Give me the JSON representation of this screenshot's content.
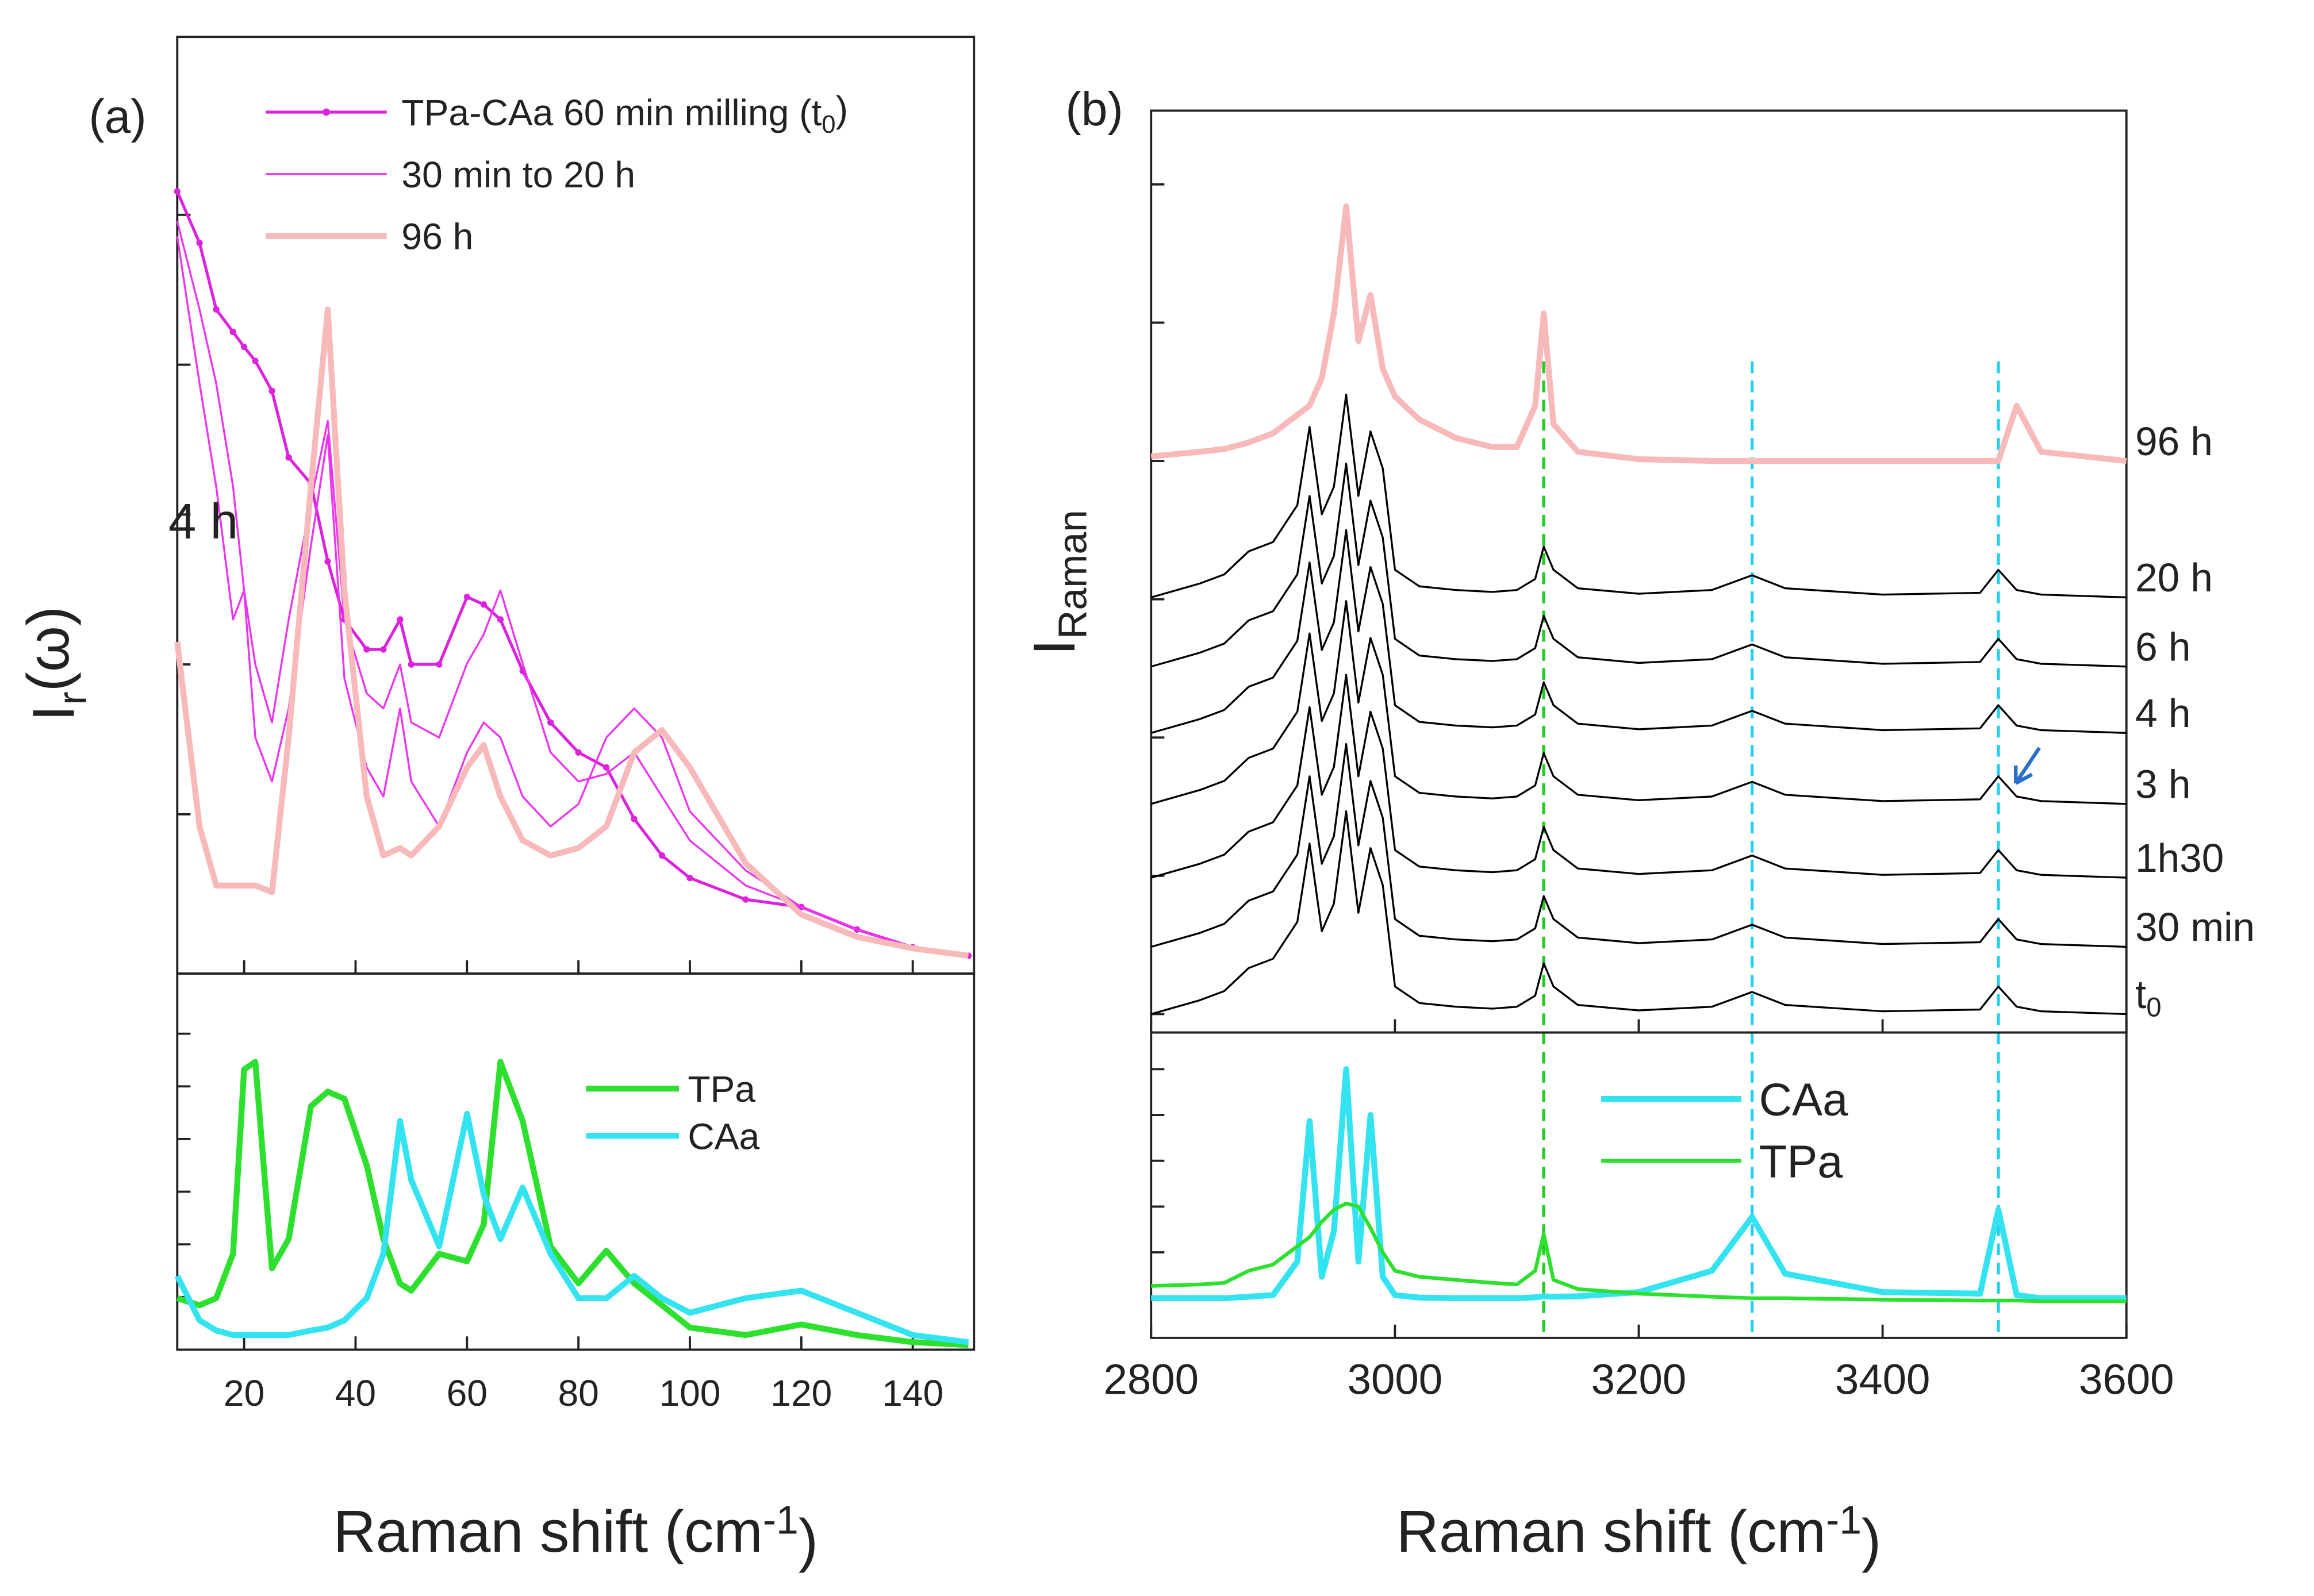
{
  "chart_data": [
    {
      "type": "line",
      "panel": "(a)",
      "ylabel": {
        "base": "I",
        "sub": "r",
        "after": "(ω)"
      },
      "xlim": [
        8,
        151
      ],
      "ylim": [
        0,
        100
      ],
      "yticks": [
        17,
        33,
        49,
        65,
        81
      ],
      "legend": "upper right",
      "annotation": "4 h",
      "annotation_color": "#ee22ee",
      "x": [
        8,
        12,
        15,
        18,
        20,
        22,
        25,
        28,
        32,
        35,
        38,
        42,
        45,
        48,
        50,
        55,
        60,
        63,
        66,
        70,
        75,
        80,
        85,
        90,
        95,
        100,
        110,
        120,
        130,
        140,
        150
      ],
      "series": [
        {
          "name": {
            "base": "TPa-CAa 60 min milling (t",
            "sub": "0",
            "after": ")"
          },
          "color": "#dd22dd",
          "style": "dotted",
          "values": [
            83.5,
            78,
            70.9,
            68.5,
            66.9,
            65.4,
            62.2,
            55.1,
            52.3,
            44,
            37.8,
            34.6,
            34.6,
            37.8,
            33,
            33,
            40.2,
            39.4,
            37.8,
            32.3,
            26.8,
            23.6,
            22,
            16.5,
            12.6,
            10.2,
            7.9,
            7.1,
            4.7,
            2.8,
            1.9
          ]
        },
        {
          "name": "30 min to 20 h",
          "color": "#ee33ee",
          "style": "thin",
          "values": [
            80.3,
            70.9,
            63,
            52,
            40.9,
            33,
            26.8,
            37.8,
            50.4,
            59,
            37.8,
            29.9,
            28.3,
            33,
            26.8,
            25.2,
            33.1,
            36.2,
            40.9,
            33.1,
            23.6,
            20.5,
            21.3,
            23.6,
            18.9,
            14.2,
            9.4,
            7.1,
            4.7,
            2.8,
            1.9
          ]
        },
        {
          "name": null,
          "color": "#ee33ee",
          "style": "thin",
          "values": [
            78.7,
            63,
            52,
            37.8,
            40.9,
            25.2,
            20.5,
            28.3,
            45.7,
            57.5,
            31.5,
            22,
            18.9,
            28.3,
            20.5,
            15.7,
            23.6,
            26.8,
            25.2,
            18.9,
            15.7,
            18.1,
            25.2,
            28.3,
            25.2,
            17.3,
            11,
            7.1,
            4.7,
            2.8,
            1.9
          ]
        },
        {
          "name": "96 h",
          "color": "#f7b9b9",
          "style": "thick",
          "values": [
            35.4,
            15.7,
            9.4,
            9.4,
            9.4,
            9.4,
            8.7,
            25.2,
            52,
            70.9,
            40.9,
            18.9,
            12.6,
            13.4,
            12.6,
            15.7,
            22,
            24.4,
            18.9,
            14.2,
            12.6,
            13.4,
            15.7,
            23.6,
            26,
            22,
            11.8,
            6.3,
            3.9,
            2.7,
            1.9
          ]
        }
      ]
    },
    {
      "type": "line",
      "xlabel": {
        "base": "Raman shift (cm",
        "sup": "-1",
        "after": ")"
      },
      "xlim": [
        8,
        151
      ],
      "xticks": [
        20,
        40,
        60,
        80,
        100,
        120,
        140
      ],
      "ylim": [
        0,
        100
      ],
      "yticks": [
        14,
        28,
        42,
        56,
        70,
        84
      ],
      "legend": "upper right",
      "x": [
        8,
        12,
        15,
        18,
        20,
        22,
        25,
        28,
        32,
        35,
        38,
        42,
        45,
        48,
        50,
        55,
        60,
        63,
        66,
        70,
        75,
        80,
        85,
        90,
        95,
        100,
        110,
        120,
        130,
        140,
        150
      ],
      "series": [
        {
          "name": "TPa",
          "color": "#2ee02e",
          "style": "thick",
          "values": [
            13.7,
            11.8,
            13.7,
            25.5,
            74.5,
            76.5,
            21.6,
            29.4,
            64.7,
            68.6,
            66.7,
            49,
            29.4,
            17.6,
            15.7,
            25.5,
            23.5,
            33.3,
            76.5,
            60.8,
            27.5,
            17.6,
            26.3,
            17.6,
            11.8,
            5.9,
            3.9,
            6.7,
            3.9,
            2,
            1.2
          ]
        },
        {
          "name": "CAa",
          "color": "#33e3f0",
          "style": "thick",
          "values": [
            19.6,
            7.8,
            5.1,
            3.9,
            3.9,
            3.9,
            3.9,
            3.9,
            5.1,
            5.9,
            7.8,
            13.7,
            25.5,
            60.8,
            45.1,
            27.5,
            62.7,
            41.2,
            29.4,
            43.1,
            25.5,
            13.7,
            13.7,
            19.6,
            13.7,
            9.8,
            13.7,
            15.7,
            9.8,
            3.9,
            2
          ]
        }
      ]
    },
    {
      "type": "line",
      "panel": "(b)",
      "ylabel": {
        "base": "I",
        "sub": "Raman"
      },
      "xlim": [
        2800,
        3600
      ],
      "ylim": [
        0,
        100
      ],
      "yticks": [
        2,
        17,
        32,
        47,
        62,
        77,
        92
      ],
      "legend": "line-end",
      "reference_lines": [
        {
          "x": 3122,
          "color": "#22cc22"
        },
        {
          "x": 3293,
          "color": "#22d0ee"
        },
        {
          "x": 3495,
          "color": "#22d0ee"
        }
      ],
      "x": [
        2800,
        2840,
        2860,
        2880,
        2900,
        2920,
        2930,
        2940,
        2950,
        2960,
        2970,
        2980,
        2990,
        3000,
        3020,
        3050,
        3080,
        3100,
        3115,
        3122,
        3130,
        3150,
        3200,
        3260,
        3293,
        3320,
        3400,
        3480,
        3495,
        3510,
        3530,
        3600
      ],
      "series": [
        {
          "name": "96 h",
          "color": "#f7b9b9",
          "style": "thick",
          "values": [
            62.5,
            63,
            63.3,
            64,
            65,
            67,
            68,
            71,
            78,
            89.6,
            75,
            80,
            72,
            69,
            66.5,
            64.5,
            63.5,
            63.5,
            68,
            78,
            66,
            63,
            62.2,
            62,
            62,
            62,
            62,
            62,
            62,
            68,
            63,
            62
          ]
        },
        {
          "name": "20 h",
          "color": "#000000",
          "style": "thin",
          "values": [
            47.2,
            48.7,
            49.7,
            52.2,
            53.2,
            57.2,
            65.7,
            56.2,
            59.2,
            69.2,
            58.2,
            65.2,
            61.2,
            50.2,
            48.4,
            48,
            47.8,
            48,
            49.2,
            52.7,
            50.2,
            48.2,
            47.6,
            48,
            49.6,
            48.2,
            47.5,
            47.7,
            50.2,
            48,
            47.5,
            47.2
          ]
        },
        {
          "name": "6 h",
          "color": "#000000",
          "style": "thin",
          "values": [
            39.7,
            41.2,
            42.2,
            44.7,
            45.7,
            49.7,
            58.2,
            48.7,
            51.7,
            61.7,
            50.7,
            57.7,
            53.7,
            42.7,
            40.9,
            40.5,
            40.3,
            40.5,
            41.7,
            45.2,
            42.7,
            40.7,
            40.1,
            40.5,
            42.1,
            40.7,
            40,
            40.2,
            42.7,
            40.5,
            40,
            39.7
          ]
        },
        {
          "name": "4 h",
          "color": "#000000",
          "style": "thin",
          "values": [
            32.5,
            34,
            35,
            37.5,
            38.5,
            42.5,
            51,
            41.5,
            44.5,
            54.5,
            43.5,
            50.5,
            46.5,
            35.5,
            33.7,
            33.3,
            33.1,
            33.3,
            34.5,
            38,
            35.5,
            33.5,
            32.9,
            33.3,
            34.9,
            33.5,
            32.8,
            33,
            35.5,
            33.3,
            32.8,
            32.5
          ]
        },
        {
          "name": "3 h",
          "color": "#000000",
          "style": "thin",
          "values": [
            24.8,
            26.3,
            27.3,
            29.8,
            30.8,
            34.8,
            43.3,
            33.8,
            36.8,
            46.8,
            35.8,
            42.8,
            38.8,
            27.8,
            26,
            25.6,
            25.4,
            25.6,
            26.8,
            30.3,
            27.8,
            25.8,
            25.2,
            25.6,
            27.2,
            25.8,
            25.1,
            25.3,
            27.8,
            25.6,
            25.1,
            24.8
          ]
        },
        {
          "name": "1h30",
          "color": "#000000",
          "style": "thin",
          "values": [
            16.8,
            18.3,
            19.3,
            21.8,
            22.8,
            26.8,
            35.3,
            25.8,
            28.8,
            38.8,
            27.8,
            34.8,
            30.8,
            19.8,
            18,
            17.6,
            17.4,
            17.6,
            18.8,
            22.3,
            19.8,
            17.8,
            17.2,
            17.6,
            19.2,
            17.8,
            17.1,
            17.3,
            19.8,
            17.6,
            17.1,
            16.8
          ]
        },
        {
          "name": "30 min",
          "color": "#000000",
          "style": "thin",
          "values": [
            9.3,
            10.8,
            11.8,
            14.3,
            15.3,
            19.3,
            27.8,
            18.3,
            21.3,
            31.3,
            20.3,
            27.3,
            23.3,
            12.3,
            10.5,
            10.1,
            9.9,
            10.1,
            11.3,
            14.8,
            12.3,
            10.3,
            9.7,
            10.1,
            11.7,
            10.3,
            9.6,
            9.8,
            12.3,
            10.1,
            9.6,
            9.3
          ]
        },
        {
          "name": {
            "base": "t",
            "sub": "0"
          },
          "color": "#000000",
          "style": "thin",
          "values": [
            2,
            3.5,
            4.5,
            7,
            8,
            12,
            20.5,
            11,
            14,
            24,
            13,
            20,
            16,
            5,
            3.2,
            2.8,
            2.6,
            2.8,
            4,
            7.5,
            5,
            3,
            2.4,
            2.8,
            4.4,
            3,
            2.3,
            2.5,
            5,
            2.8,
            2.3,
            2
          ]
        }
      ]
    },
    {
      "type": "line",
      "xlabel": {
        "base": "Raman shift (cm",
        "sup": "-1",
        "after": ")"
      },
      "xlim": [
        2800,
        3600
      ],
      "xticks": [
        2800,
        3000,
        3200,
        3400,
        3600
      ],
      "ylim": [
        0,
        100
      ],
      "yticks": [
        13,
        28,
        43,
        58,
        73,
        88
      ],
      "legend": "upper center",
      "x": [
        2800,
        2840,
        2860,
        2880,
        2900,
        2920,
        2930,
        2940,
        2950,
        2960,
        2970,
        2980,
        2990,
        3000,
        3020,
        3050,
        3080,
        3100,
        3115,
        3122,
        3130,
        3150,
        3200,
        3260,
        3293,
        3320,
        3400,
        3480,
        3495,
        3510,
        3530,
        3600
      ],
      "series": [
        {
          "name": "CAa",
          "color": "#33e3f0",
          "style": "thick",
          "values": [
            13,
            13,
            13,
            13.5,
            14,
            25,
            71,
            20,
            35,
            88,
            25,
            73,
            20,
            14,
            13.2,
            13,
            13,
            13,
            13.3,
            13.6,
            13.5,
            13.6,
            15,
            22,
            39.6,
            21,
            15,
            14.5,
            42,
            14,
            13,
            13
          ]
        },
        {
          "name": "TPa",
          "color": "#2ee02e",
          "style": "medium",
          "values": [
            17,
            17.5,
            18,
            22,
            24,
            30,
            33,
            38,
            42,
            44,
            43,
            36,
            28,
            22,
            20,
            19,
            18,
            17.5,
            22,
            34,
            19,
            16,
            14.5,
            13.5,
            13,
            13,
            12.5,
            12.2,
            12.2,
            12.2,
            12,
            12
          ]
        }
      ]
    }
  ]
}
